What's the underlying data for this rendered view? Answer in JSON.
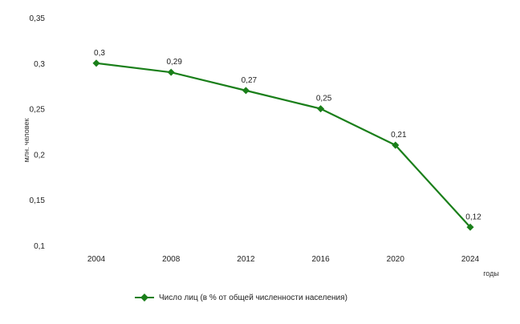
{
  "chart_data": {
    "type": "line",
    "categories": [
      "2004",
      "2008",
      "2012",
      "2016",
      "2020",
      "2024"
    ],
    "category_labels": [
      "2004",
      "2008",
      "2012",
      "2016",
      "2020",
      "2024"
    ],
    "series": [
      {
        "name": "Число лиц (в % от общей численности населения)",
        "values": [
          0.3,
          0.29,
          0.27,
          0.25,
          0.21,
          0.12
        ],
        "labels": [
          "0,3",
          "0,29",
          "0,27",
          "0,25",
          "0,21",
          "0,12"
        ],
        "color": "#1a7f1a"
      }
    ],
    "ylim": [
      0.1,
      0.35
    ],
    "yticks": [
      0.1,
      0.15,
      0.2,
      0.25,
      0.3,
      0.35
    ],
    "ytick_labels": [
      "0,1",
      "0,15",
      "0,2",
      "0,25",
      "0,3",
      "0,35"
    ],
    "ylabel": "млн. человек",
    "xlabel": "годы",
    "grid": false,
    "legend_position": "bottom"
  }
}
